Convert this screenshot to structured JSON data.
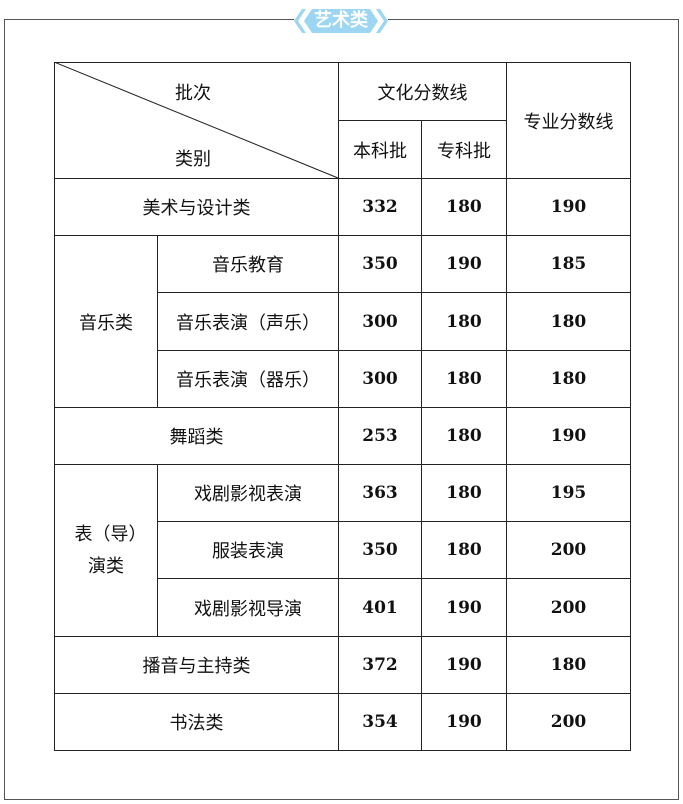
{
  "badge": {
    "title": "艺术类",
    "color": "#9dd6f2"
  },
  "header": {
    "batch": "批次",
    "category": "类别",
    "culture_line": "文化分数线",
    "undergrad": "本科批",
    "junior": "专科批",
    "professional_line": "专业分数线"
  },
  "rows": [
    {
      "group": "美术与设计类",
      "sub": "",
      "a": "332",
      "b": "180",
      "c": "190"
    },
    {
      "group": "音乐类",
      "sub": "音乐教育",
      "a": "350",
      "b": "190",
      "c": "185"
    },
    {
      "group": "",
      "sub": "音乐表演（声乐）",
      "a": "300",
      "b": "180",
      "c": "180"
    },
    {
      "group": "",
      "sub": "音乐表演（器乐）",
      "a": "300",
      "b": "180",
      "c": "180"
    },
    {
      "group": "舞蹈类",
      "sub": "",
      "a": "253",
      "b": "180",
      "c": "190"
    },
    {
      "group": "表（导）演类",
      "sub": "戏剧影视表演",
      "a": "363",
      "b": "180",
      "c": "195"
    },
    {
      "group": "",
      "sub": "服装表演",
      "a": "350",
      "b": "180",
      "c": "200"
    },
    {
      "group": "",
      "sub": "戏剧影视导演",
      "a": "401",
      "b": "190",
      "c": "200"
    },
    {
      "group": "播音与主持类",
      "sub": "",
      "a": "372",
      "b": "190",
      "c": "180"
    },
    {
      "group": "书法类",
      "sub": "",
      "a": "354",
      "b": "190",
      "c": "200"
    }
  ]
}
